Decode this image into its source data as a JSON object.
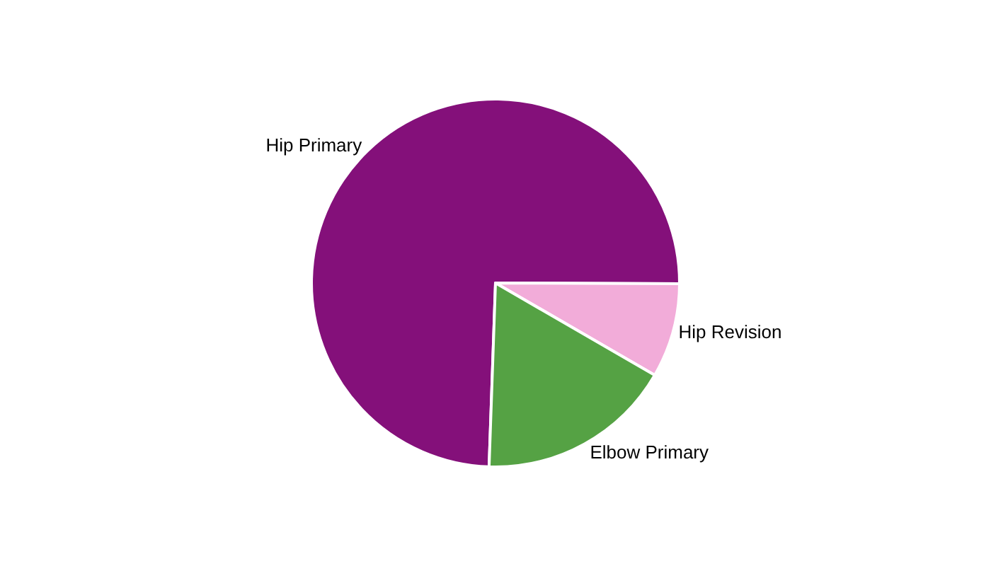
{
  "chart_data": {
    "type": "pie",
    "categories": [
      "Hip Primary",
      "Hip Revision",
      "Elbow Primary"
    ],
    "values": [
      74.5,
      8.3,
      17.2
    ],
    "colors": [
      "#84107a",
      "#f2acd9",
      "#55a244"
    ],
    "legend": false
  }
}
